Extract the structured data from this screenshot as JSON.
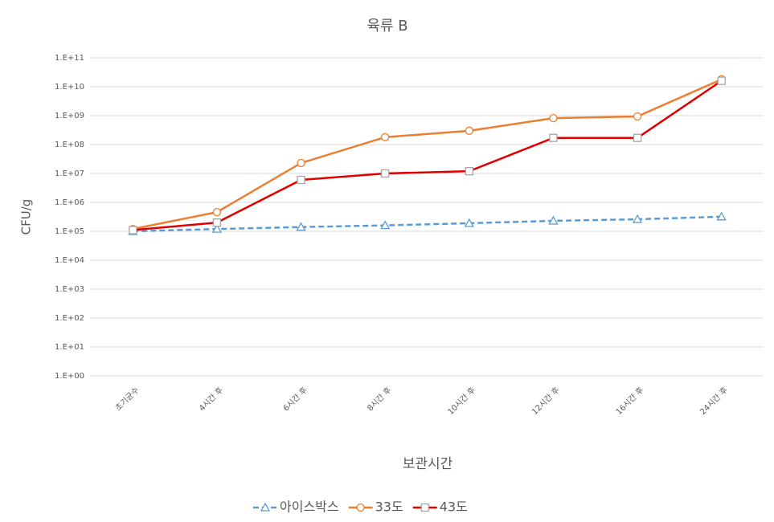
{
  "chart_data": {
    "type": "line",
    "title": "육류 B",
    "x_label": "보관시간",
    "y_label": "CFU/g",
    "categories": [
      "초기균수",
      "4시간 후",
      "6시간 후",
      "8시간 후",
      "10시간 후",
      "12시간 후",
      "16시간 후",
      "24시간 후"
    ],
    "log_scale": true,
    "grid": true,
    "legend": "bottom",
    "ylim": [
      1,
      100000000000
    ],
    "yticks": [
      {
        "value": 1,
        "label": "1.E+00"
      },
      {
        "value": 10,
        "label": "1.E+01"
      },
      {
        "value": 100,
        "label": "1.E+02"
      },
      {
        "value": 1000,
        "label": "1.E+03"
      },
      {
        "value": 10000,
        "label": "1.E+04"
      },
      {
        "value": 100000,
        "label": "1.E+05"
      },
      {
        "value": 1000000,
        "label": "1.E+06"
      },
      {
        "value": 10000000,
        "label": "1.E+07"
      },
      {
        "value": 100000000,
        "label": "1.E+08"
      },
      {
        "value": 1000000000,
        "label": "1.E+09"
      },
      {
        "value": 10000000000,
        "label": "1.E+10"
      },
      {
        "value": 100000000000,
        "label": "1.E+11"
      }
    ],
    "series": [
      {
        "name": "아이스박스",
        "color": "#5b9bd5",
        "marker": "triangle",
        "marker_color": "#5b9bd5",
        "dashed": true,
        "values": [
          100000,
          120000,
          140000,
          160000,
          190000,
          230000,
          260000,
          320000
        ]
      },
      {
        "name": "33도",
        "color": "#ed7d31",
        "marker": "circle",
        "marker_color": "#ed7d31",
        "dashed": false,
        "values": [
          120000,
          460000,
          23000000,
          180000000,
          300000000,
          820000000,
          940000000,
          18000000000
        ]
      },
      {
        "name": "43도",
        "color": "#e00000",
        "marker": "square",
        "marker_color": "#a5a5a5",
        "dashed": false,
        "values": [
          110000,
          200000,
          6000000,
          10000000,
          12000000,
          170000000,
          170000000,
          16000000000
        ]
      }
    ]
  }
}
